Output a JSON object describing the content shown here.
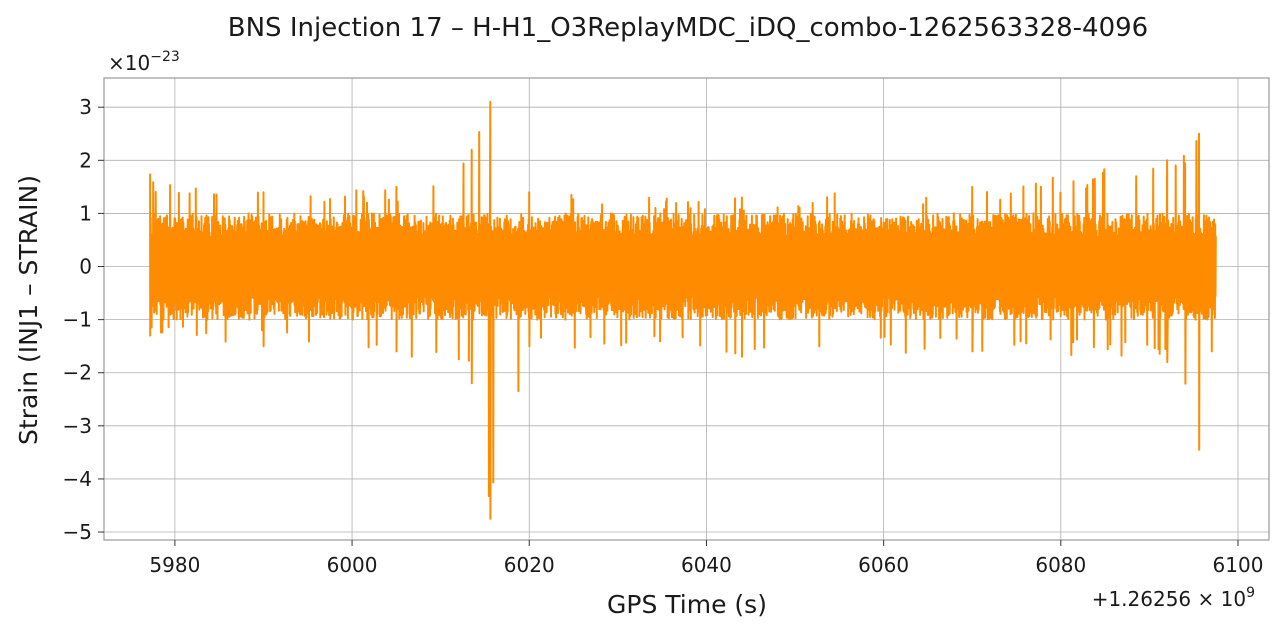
{
  "chart_data": {
    "type": "line",
    "title": "BNS Injection 17 – H-H1_O3ReplayMDC_iDQ_combo-1262563328-4096",
    "xlabel": "GPS Time (s)",
    "ylabel": "Strain (INJ1 – STRAIN)",
    "x_offset_label": "+1.26256 × 10",
    "x_offset_exponent": "9",
    "y_multiplier_label": "×10",
    "y_multiplier_exponent": "−23",
    "xlim": [
      1262565972,
      1262566103.5
    ],
    "ylim": [
      -5.15e-23,
      3.55e-23
    ],
    "x_ticks": [
      1262565980,
      1262566000,
      1262566020,
      1262566040,
      1262566060,
      1262566080,
      1262566100
    ],
    "x_tick_labels": [
      "5980",
      "6000",
      "6020",
      "6040",
      "6060",
      "6080",
      "6100"
    ],
    "y_ticks": [
      3e-23,
      2e-23,
      1e-23,
      0,
      -1e-23,
      -2e-23,
      -3e-23,
      -4e-23,
      -5e-23
    ],
    "y_tick_labels": [
      "3",
      "2",
      "1",
      "0",
      "−1",
      "−2",
      "−3",
      "−4",
      "−5"
    ],
    "grid": true,
    "series": [
      {
        "color": "#ff8c00",
        "x_start": 1262565977.2,
        "x_end": 1262566097.5,
        "typical_amplitude": 1e-23,
        "envelope": [
          {
            "x": 1262565977.2,
            "ymax": 1.75e-23,
            "ymin": -1.3e-23
          },
          {
            "x": 1262565990,
            "ymax": 1.4e-23,
            "ymin": -1.5e-23
          },
          {
            "x": 1262566005,
            "ymax": 1.5e-23,
            "ymin": -1.6e-23
          },
          {
            "x": 1262566013.5,
            "ymax": 2.2e-23,
            "ymin": -2.2e-23
          },
          {
            "x": 1262566015.6,
            "ymax": 3.1e-23,
            "ymin": -4.75e-23
          },
          {
            "x": 1262566020,
            "ymax": 1.4e-23,
            "ymin": -1.5e-23
          },
          {
            "x": 1262566044,
            "ymax": 1.3e-23,
            "ymin": -1.7e-23
          },
          {
            "x": 1262566070,
            "ymax": 1.5e-23,
            "ymin": -1.6e-23
          },
          {
            "x": 1262566092,
            "ymax": 2e-23,
            "ymin": -1.8e-23
          },
          {
            "x": 1262566095.6,
            "ymax": 2.5e-23,
            "ymin": -3.45e-23
          },
          {
            "x": 1262566097.5,
            "ymax": 1.4e-23,
            "ymin": -1.25e-23
          }
        ]
      }
    ]
  }
}
